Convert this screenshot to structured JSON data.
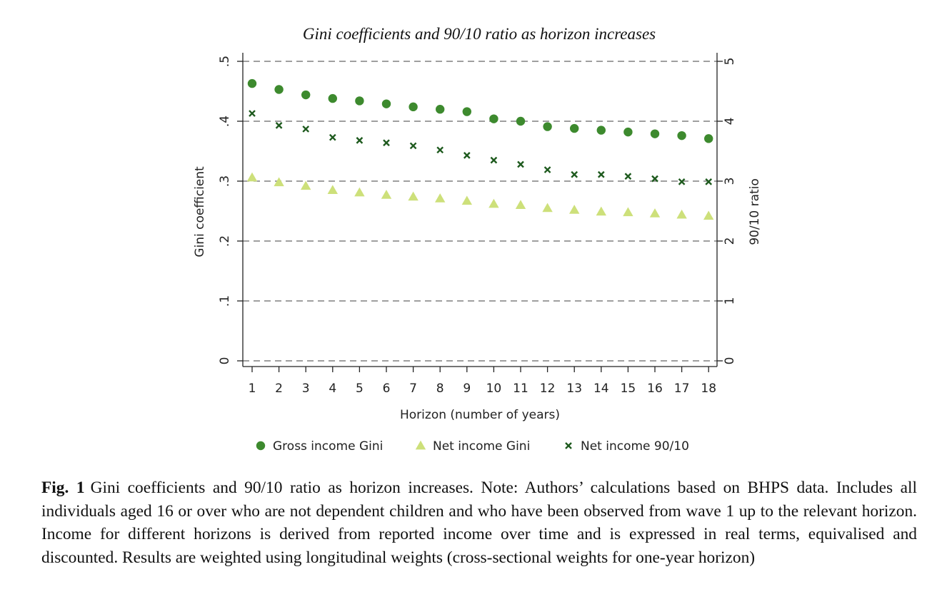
{
  "chart_data": {
    "type": "scatter",
    "title": "Gini coefficients and 90/10 ratio as horizon increases",
    "xlabel": "Horizon (number of years)",
    "ylabel": "Gini coefficient",
    "y2label": "90/10 ratio",
    "x": [
      1,
      2,
      3,
      4,
      5,
      6,
      7,
      8,
      9,
      10,
      11,
      12,
      13,
      14,
      15,
      16,
      17,
      18
    ],
    "xticks": [
      "1",
      "2",
      "3",
      "4",
      "5",
      "6",
      "7",
      "8",
      "9",
      "10",
      "11",
      "12",
      "13",
      "14",
      "15",
      "16",
      "17",
      "18"
    ],
    "ylim": [
      0,
      0.5
    ],
    "yticks": [
      "0",
      ".1",
      ".2",
      ".3",
      ".4",
      ".5"
    ],
    "y2lim": [
      0,
      5
    ],
    "y2ticks": [
      "0",
      "1",
      "2",
      "3",
      "4",
      "5"
    ],
    "grid": "dashed horizontal",
    "legend_position": "bottom",
    "series": [
      {
        "name": "Gross income Gini",
        "axis": "left",
        "marker": "circle",
        "color": "#3d8a2e",
        "values": [
          0.463,
          0.453,
          0.444,
          0.438,
          0.434,
          0.429,
          0.424,
          0.42,
          0.416,
          0.404,
          0.4,
          0.391,
          0.388,
          0.385,
          0.382,
          0.379,
          0.376,
          0.371
        ]
      },
      {
        "name": "Net income Gini",
        "axis": "left",
        "marker": "triangle",
        "color": "#cde07a",
        "values": [
          0.306,
          0.298,
          0.292,
          0.285,
          0.281,
          0.277,
          0.274,
          0.271,
          0.267,
          0.262,
          0.26,
          0.255,
          0.252,
          0.249,
          0.248,
          0.246,
          0.244,
          0.242
        ]
      },
      {
        "name": "Net income 90/10",
        "axis": "right",
        "marker": "x",
        "color": "#1e5a1e",
        "values": [
          4.13,
          3.93,
          3.87,
          3.73,
          3.68,
          3.64,
          3.59,
          3.52,
          3.43,
          3.35,
          3.28,
          3.19,
          3.11,
          3.11,
          3.08,
          3.04,
          2.99,
          2.99
        ]
      }
    ]
  },
  "caption": {
    "label": "Fig. 1",
    "text": "Gini coefficients and 90/10 ratio as horizon increases. Note: Authors’ calculations based on BHPS data. Includes all individuals aged 16 or over who are not dependent children and who have been observed from wave 1 up to the relevant horizon. Income for different horizons is derived from reported income over time and is expressed in real terms, equivalised and discounted. Results are weighted using longitudinal weights (cross-sectional weights for one-year horizon)"
  }
}
